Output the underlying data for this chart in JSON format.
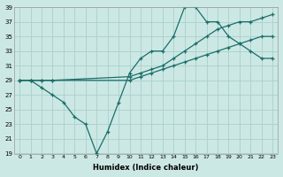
{
  "xlabel": "Humidex (Indice chaleur)",
  "background_color": "#cce8e4",
  "grid_color": "#aacfcc",
  "line_color": "#1a6e6a",
  "xlim": [
    -0.5,
    23.5
  ],
  "ylim": [
    19,
    39
  ],
  "xticks": [
    0,
    1,
    2,
    3,
    4,
    5,
    6,
    7,
    8,
    9,
    10,
    11,
    12,
    13,
    14,
    15,
    16,
    17,
    18,
    19,
    20,
    21,
    22,
    23
  ],
  "yticks": [
    19,
    21,
    23,
    25,
    27,
    29,
    31,
    33,
    35,
    37,
    39
  ],
  "line1_x": [
    0,
    1,
    2,
    3,
    4,
    5,
    6,
    7,
    8,
    9,
    10,
    11,
    12,
    13,
    14,
    15,
    16,
    17,
    18,
    19,
    20,
    21,
    22,
    23
  ],
  "line1_y": [
    29,
    29,
    28,
    27,
    26,
    24,
    23,
    19,
    22,
    26,
    30,
    32,
    33,
    33,
    35,
    39,
    39,
    37,
    37,
    35,
    34,
    33,
    32,
    32
  ],
  "line2_x": [
    0,
    1,
    2,
    3,
    10,
    11,
    12,
    13,
    14,
    15,
    16,
    17,
    18,
    19,
    20,
    21,
    22,
    23
  ],
  "line2_y": [
    29,
    29,
    29,
    29,
    29,
    29.5,
    30,
    30.5,
    31,
    31.5,
    32,
    32.5,
    33,
    33.5,
    34,
    34.5,
    35,
    35
  ],
  "line3_x": [
    0,
    1,
    2,
    3,
    10,
    11,
    12,
    13,
    14,
    15,
    16,
    17,
    18,
    19,
    20,
    21,
    22,
    23
  ],
  "line3_y": [
    29,
    29,
    29,
    29,
    29.5,
    30,
    30.5,
    31,
    32,
    33,
    34,
    35,
    36,
    36.5,
    37,
    37,
    37.5,
    38
  ],
  "marker_pts_line1": [
    0,
    1,
    2,
    3,
    4,
    5,
    6,
    7,
    8,
    9,
    10,
    11,
    12,
    13,
    14,
    15,
    16,
    17,
    18,
    19,
    20,
    21,
    22,
    23
  ],
  "marker_pts_line2": [
    0,
    1,
    2,
    3,
    10,
    11,
    12,
    13,
    14,
    15,
    16,
    17,
    18,
    19,
    20,
    21,
    22,
    23
  ],
  "marker_pts_line3": [
    0,
    1,
    2,
    3,
    10,
    11,
    12,
    13,
    14,
    15,
    16,
    17,
    18,
    19,
    20,
    21,
    22,
    23
  ]
}
